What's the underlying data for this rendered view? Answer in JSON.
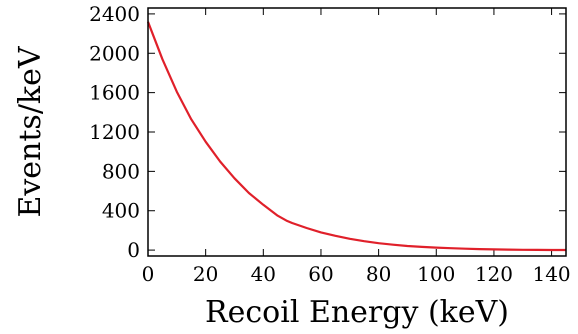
{
  "chart_data": {
    "type": "line",
    "xlabel": "Recoil Energy (keV)",
    "ylabel": "Events/keV",
    "xlim": [
      0,
      145
    ],
    "ylim": [
      -60,
      2460
    ],
    "x_ticks": [
      0,
      20,
      40,
      60,
      80,
      100,
      120,
      140
    ],
    "y_ticks": [
      0,
      400,
      800,
      1200,
      1600,
      2000,
      2400
    ],
    "grid": false,
    "legend": "none",
    "line_color": "#e0202a",
    "series": [
      {
        "x": [
          0,
          5,
          10,
          15,
          20,
          25,
          30,
          35,
          40,
          45,
          48,
          50,
          55,
          60,
          65,
          70,
          75,
          80,
          85,
          90,
          95,
          100,
          105,
          110,
          115,
          120,
          125,
          130,
          135,
          140,
          145
        ],
        "values": [
          2320,
          1940,
          1610,
          1330,
          1100,
          900,
          730,
          580,
          460,
          350,
          300,
          275,
          225,
          180,
          145,
          115,
          90,
          70,
          55,
          42,
          32,
          25,
          19,
          14,
          10,
          7,
          5,
          3,
          2,
          1,
          1
        ]
      }
    ]
  }
}
